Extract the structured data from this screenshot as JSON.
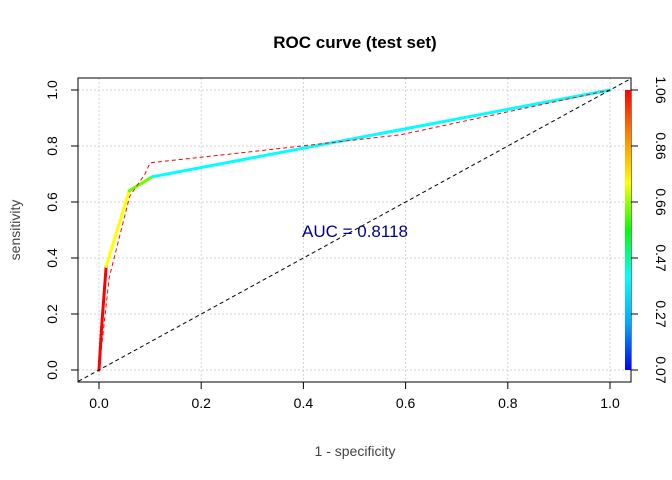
{
  "chart_data": {
    "type": "line",
    "title": "ROC curve (test set)",
    "xlabel": "1 - specificity",
    "ylabel": "sensitivity",
    "xlim": [
      0,
      1
    ],
    "ylim": [
      0,
      1
    ],
    "grid": true,
    "x_ticks": [
      "0.0",
      "0.2",
      "0.4",
      "0.6",
      "0.8",
      "1.0"
    ],
    "y_ticks": [
      "0.0",
      "0.2",
      "0.4",
      "0.6",
      "0.8",
      "1.0"
    ],
    "annotation": "AUC = 0.8118",
    "annotation_color": "#00008B",
    "series": [
      {
        "name": "roc-curve",
        "style": "solid-colored",
        "points": [
          [
            0,
            0,
            "#FF0000"
          ],
          [
            0.005,
            0.15,
            "#FF0000"
          ],
          [
            0.014,
            0.37,
            "#FF0000"
          ],
          [
            0.059,
            0.64,
            "#FFFF00"
          ],
          [
            0.104,
            0.69,
            "#66FF00"
          ],
          [
            1.0,
            1.0,
            "#00FFFF"
          ]
        ]
      },
      {
        "name": "roc-curve-dashed",
        "style": "dashed",
        "color": "#FF0000",
        "points": [
          [
            0,
            0
          ],
          [
            0.02,
            0.33
          ],
          [
            0.06,
            0.62
          ],
          [
            0.09,
            0.7
          ],
          [
            0.1,
            0.74
          ],
          [
            0.3,
            0.78
          ],
          [
            0.59,
            0.84
          ],
          [
            1.0,
            1.0
          ]
        ]
      },
      {
        "name": "diagonal",
        "style": "dashed",
        "color": "#000000",
        "points": [
          [
            -0.04,
            -0.04
          ],
          [
            1.04,
            1.04
          ]
        ]
      }
    ],
    "colorbar": {
      "ticks": [
        "0.07",
        "0.27",
        "0.47",
        "0.66",
        "0.86",
        "1.06"
      ],
      "colors": [
        "#0000FF",
        "#00AAFF",
        "#00FFFF",
        "#00FF00",
        "#FFFF00",
        "#FF8800",
        "#FF0000"
      ]
    }
  }
}
